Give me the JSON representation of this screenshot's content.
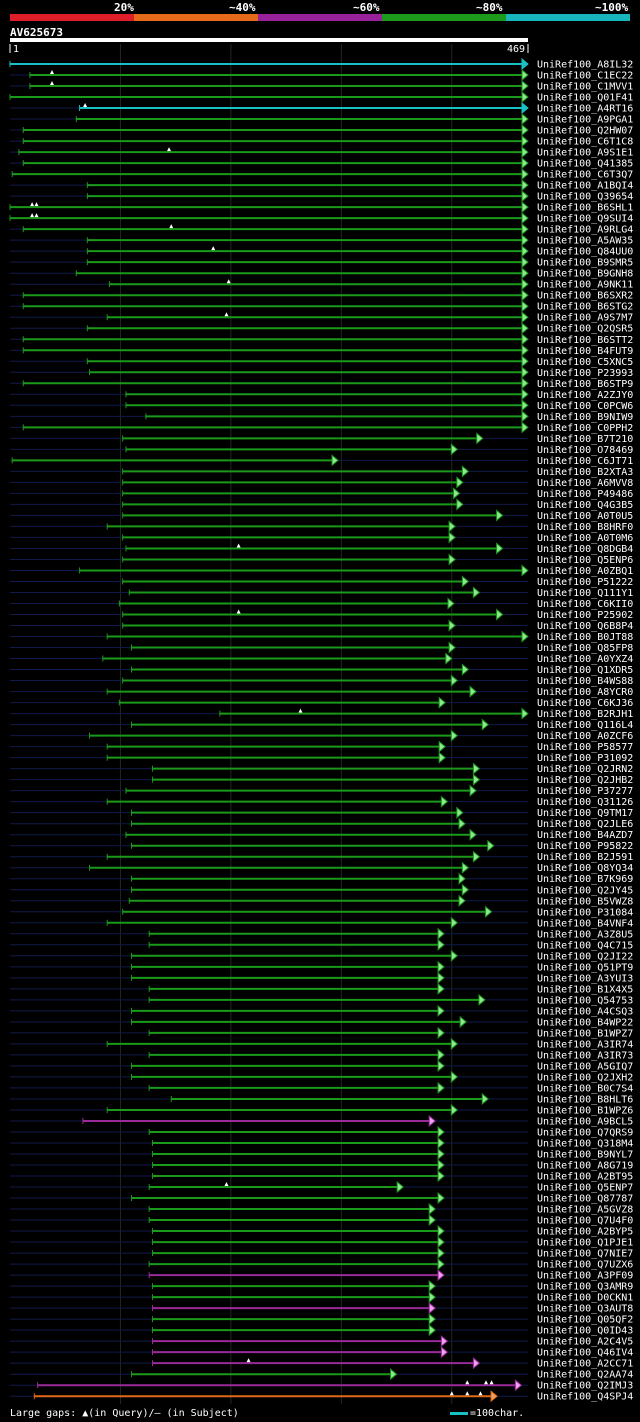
{
  "legend": {
    "colors": [
      "#e01e2a",
      "#e66a1a",
      "#98229a",
      "#1b9a1b",
      "#17b6bd"
    ],
    "labels": [
      "20%",
      "~40%",
      "~60%",
      "~80%",
      "~100%"
    ]
  },
  "query": {
    "id": "AV625673",
    "start": "1",
    "end": "469"
  },
  "footer": {
    "gaps_text": "Large gaps: ▲(in Query)/— (in Subject)",
    "scale_text": "=100char."
  },
  "hits": [
    {
      "name": "UniRef100_A8IL32",
      "start": 0,
      "end": 469,
      "color": "cyan"
    },
    {
      "name": "UniRef100_C1EC22",
      "start": 18,
      "end": 469,
      "color": "green",
      "q": [
        38
      ]
    },
    {
      "name": "UniRef100_C1MVV1",
      "start": 18,
      "end": 469,
      "color": "green",
      "q": [
        38
      ]
    },
    {
      "name": "UniRef100_Q01F41",
      "start": 0,
      "end": 469,
      "color": "green"
    },
    {
      "name": "UniRef100_A4RT16",
      "start": 63,
      "end": 469,
      "color": "cyan",
      "q": [
        68
      ]
    },
    {
      "name": "UniRef100_A9PGA1",
      "start": 60,
      "end": 469,
      "color": "green"
    },
    {
      "name": "UniRef100_Q2HW07",
      "start": 12,
      "end": 469,
      "color": "green"
    },
    {
      "name": "UniRef100_C6T1C8",
      "start": 12,
      "end": 469,
      "color": "green"
    },
    {
      "name": "UniRef100_A9S1E1",
      "start": 8,
      "end": 469,
      "color": "green",
      "q": [
        144
      ]
    },
    {
      "name": "UniRef100_Q41385",
      "start": 12,
      "end": 469,
      "color": "green"
    },
    {
      "name": "UniRef100_C6T3Q7",
      "start": 2,
      "end": 469,
      "color": "green"
    },
    {
      "name": "UniRef100_A1BQI4",
      "start": 70,
      "end": 469,
      "color": "green"
    },
    {
      "name": "UniRef100_Q39654",
      "start": 70,
      "end": 469,
      "color": "green"
    },
    {
      "name": "UniRef100_B6SHL1",
      "start": 0,
      "end": 469,
      "color": "green",
      "q": [
        20,
        24
      ]
    },
    {
      "name": "UniRef100_Q9SUI4",
      "start": 0,
      "end": 469,
      "color": "green",
      "q": [
        20,
        24
      ]
    },
    {
      "name": "UniRef100_A9RLG4",
      "start": 12,
      "end": 469,
      "color": "green",
      "q": [
        146
      ]
    },
    {
      "name": "UniRef100_A5AW35",
      "start": 70,
      "end": 469,
      "color": "green"
    },
    {
      "name": "UniRef100_Q84UU0",
      "start": 70,
      "end": 469,
      "color": "green",
      "q": [
        184
      ]
    },
    {
      "name": "UniRef100_B9SMR5",
      "start": 70,
      "end": 469,
      "color": "green"
    },
    {
      "name": "UniRef100_B9GNH8",
      "start": 60,
      "end": 469,
      "color": "green"
    },
    {
      "name": "UniRef100_A9NK11",
      "start": 90,
      "end": 469,
      "color": "green",
      "q": [
        198
      ]
    },
    {
      "name": "UniRef100_B6SXR2",
      "start": 12,
      "end": 469,
      "color": "green"
    },
    {
      "name": "UniRef100_B6STG2",
      "start": 12,
      "end": 469,
      "color": "green"
    },
    {
      "name": "UniRef100_A9S7M7",
      "start": 88,
      "end": 469,
      "color": "green",
      "q": [
        196
      ]
    },
    {
      "name": "UniRef100_Q2QSR5",
      "start": 70,
      "end": 469,
      "color": "green"
    },
    {
      "name": "UniRef100_B6STT2",
      "start": 12,
      "end": 469,
      "color": "green"
    },
    {
      "name": "UniRef100_B4FUT9",
      "start": 12,
      "end": 469,
      "color": "green"
    },
    {
      "name": "UniRef100_C5XNC5",
      "start": 70,
      "end": 469,
      "color": "green"
    },
    {
      "name": "UniRef100_P23993",
      "start": 72,
      "end": 469,
      "color": "green"
    },
    {
      "name": "UniRef100_B6STP9",
      "start": 12,
      "end": 469,
      "color": "green"
    },
    {
      "name": "UniRef100_A2ZJY0",
      "start": 105,
      "end": 469,
      "color": "green"
    },
    {
      "name": "UniRef100_C0PCW6",
      "start": 105,
      "end": 469,
      "color": "green"
    },
    {
      "name": "UniRef100_B9NIW9",
      "start": 123,
      "end": 469,
      "color": "green"
    },
    {
      "name": "UniRef100_C0PPH2",
      "start": 12,
      "end": 469,
      "color": "green"
    },
    {
      "name": "UniRef100_B7T210",
      "start": 102,
      "end": 428,
      "color": "green"
    },
    {
      "name": "UniRef100_O78469",
      "start": 105,
      "end": 405,
      "color": "green"
    },
    {
      "name": "UniRef100_C6JT71",
      "start": 2,
      "end": 297,
      "color": "green"
    },
    {
      "name": "UniRef100_B2XTA3",
      "start": 102,
      "end": 415,
      "color": "green"
    },
    {
      "name": "UniRef100_A6MVV8",
      "start": 102,
      "end": 410,
      "color": "green"
    },
    {
      "name": "UniRef100_P49486",
      "start": 102,
      "end": 407,
      "color": "green"
    },
    {
      "name": "UniRef100_Q4G3B5",
      "start": 102,
      "end": 410,
      "color": "green"
    },
    {
      "name": "UniRef100_A0T0U5",
      "start": 102,
      "end": 446,
      "color": "green"
    },
    {
      "name": "UniRef100_B8HRF0",
      "start": 88,
      "end": 403,
      "color": "green"
    },
    {
      "name": "UniRef100_A0T0M6",
      "start": 102,
      "end": 403,
      "color": "green"
    },
    {
      "name": "UniRef100_Q8DGB4",
      "start": 105,
      "end": 446,
      "color": "green",
      "q": [
        207
      ]
    },
    {
      "name": "UniRef100_Q5ENP6",
      "start": 102,
      "end": 403,
      "color": "green"
    },
    {
      "name": "UniRef100_A0ZBQ1",
      "start": 63,
      "end": 469,
      "color": "green"
    },
    {
      "name": "UniRef100_P51222",
      "start": 102,
      "end": 415,
      "color": "green"
    },
    {
      "name": "UniRef100_Q111Y1",
      "start": 108,
      "end": 425,
      "color": "green"
    },
    {
      "name": "UniRef100_C6KII0",
      "start": 99,
      "end": 402,
      "color": "green"
    },
    {
      "name": "UniRef100_P25902",
      "start": 102,
      "end": 446,
      "color": "green",
      "q": [
        207
      ]
    },
    {
      "name": "UniRef100_Q6B8P4",
      "start": 102,
      "end": 403,
      "color": "green"
    },
    {
      "name": "UniRef100_B0JT88",
      "start": 88,
      "end": 469,
      "color": "green"
    },
    {
      "name": "UniRef100_Q85FP8",
      "start": 110,
      "end": 403,
      "color": "green"
    },
    {
      "name": "UniRef100_A0YXZ4",
      "start": 84,
      "end": 400,
      "color": "green"
    },
    {
      "name": "UniRef100_Q1XDR5",
      "start": 110,
      "end": 415,
      "color": "green"
    },
    {
      "name": "UniRef100_B4WS88",
      "start": 102,
      "end": 405,
      "color": "green"
    },
    {
      "name": "UniRef100_A8YCR0",
      "start": 88,
      "end": 422,
      "color": "green"
    },
    {
      "name": "UniRef100_C6KJ36",
      "start": 99,
      "end": 394,
      "color": "green"
    },
    {
      "name": "UniRef100_B2RJH1",
      "start": 190,
      "end": 469,
      "color": "green",
      "q": [
        263
      ]
    },
    {
      "name": "UniRef100_Q116L4",
      "start": 110,
      "end": 433,
      "color": "green"
    },
    {
      "name": "UniRef100_A0ZCF6",
      "start": 72,
      "end": 405,
      "color": "green"
    },
    {
      "name": "UniRef100_P58577",
      "start": 88,
      "end": 394,
      "color": "green"
    },
    {
      "name": "UniRef100_P31092",
      "start": 88,
      "end": 394,
      "color": "green"
    },
    {
      "name": "UniRef100_Q2JRN2",
      "start": 129,
      "end": 425,
      "color": "green"
    },
    {
      "name": "UniRef100_Q2JHB2",
      "start": 129,
      "end": 425,
      "color": "green"
    },
    {
      "name": "UniRef100_P37277",
      "start": 105,
      "end": 422,
      "color": "green"
    },
    {
      "name": "UniRef100_Q31126",
      "start": 88,
      "end": 396,
      "color": "green"
    },
    {
      "name": "UniRef100_Q9TM17",
      "start": 110,
      "end": 410,
      "color": "green"
    },
    {
      "name": "UniRef100_Q2JLE6",
      "start": 110,
      "end": 412,
      "color": "green"
    },
    {
      "name": "UniRef100_B4AZD7",
      "start": 105,
      "end": 422,
      "color": "green"
    },
    {
      "name": "UniRef100_P95822",
      "start": 110,
      "end": 438,
      "color": "green"
    },
    {
      "name": "UniRef100_B2J591",
      "start": 88,
      "end": 425,
      "color": "green"
    },
    {
      "name": "UniRef100_Q8YQ34",
      "start": 72,
      "end": 415,
      "color": "green"
    },
    {
      "name": "UniRef100_B7K969",
      "start": 110,
      "end": 412,
      "color": "green"
    },
    {
      "name": "UniRef100_Q2JY45",
      "start": 110,
      "end": 415,
      "color": "green"
    },
    {
      "name": "UniRef100_B5VWZ8",
      "start": 108,
      "end": 412,
      "color": "green"
    },
    {
      "name": "UniRef100_P31084",
      "start": 102,
      "end": 436,
      "color": "green"
    },
    {
      "name": "UniRef100_B4VNF4",
      "start": 88,
      "end": 405,
      "color": "green"
    },
    {
      "name": "UniRef100_A3Z8U5",
      "start": 126,
      "end": 393,
      "color": "green"
    },
    {
      "name": "UniRef100_Q4C715",
      "start": 126,
      "end": 393,
      "color": "green"
    },
    {
      "name": "UniRef100_Q2JI22",
      "start": 110,
      "end": 405,
      "color": "green"
    },
    {
      "name": "UniRef100_Q51PT9",
      "start": 110,
      "end": 393,
      "color": "green"
    },
    {
      "name": "UniRef100_A3YUI3",
      "start": 110,
      "end": 393,
      "color": "green"
    },
    {
      "name": "UniRef100_B1X4X5",
      "start": 126,
      "end": 393,
      "color": "green"
    },
    {
      "name": "UniRef100_Q54753",
      "start": 126,
      "end": 430,
      "color": "green"
    },
    {
      "name": "UniRef100_A4CSQ3",
      "start": 110,
      "end": 393,
      "color": "green"
    },
    {
      "name": "UniRef100_B4WP22",
      "start": 110,
      "end": 413,
      "color": "green"
    },
    {
      "name": "UniRef100_B1WPZ7",
      "start": 126,
      "end": 393,
      "color": "green"
    },
    {
      "name": "UniRef100_A3IR74",
      "start": 88,
      "end": 405,
      "color": "green"
    },
    {
      "name": "UniRef100_A3IR73",
      "start": 126,
      "end": 393,
      "color": "green"
    },
    {
      "name": "UniRef100_A5GIQ7",
      "start": 110,
      "end": 393,
      "color": "green"
    },
    {
      "name": "UniRef100_Q2JXH2",
      "start": 110,
      "end": 405,
      "color": "green"
    },
    {
      "name": "UniRef100_B0C7S4",
      "start": 126,
      "end": 393,
      "color": "green"
    },
    {
      "name": "UniRef100_B8HLT6",
      "start": 146,
      "end": 433,
      "color": "green"
    },
    {
      "name": "UniRef100_B1WPZ6",
      "start": 88,
      "end": 405,
      "color": "green"
    },
    {
      "name": "UniRef100_A9BCL5",
      "start": 66,
      "end": 385,
      "color": "purple"
    },
    {
      "name": "UniRef100_Q7QRS9",
      "start": 126,
      "end": 393,
      "color": "green"
    },
    {
      "name": "UniRef100_Q318M4",
      "start": 129,
      "end": 393,
      "color": "green"
    },
    {
      "name": "UniRef100_B9NYL7",
      "start": 129,
      "end": 393,
      "color": "green"
    },
    {
      "name": "UniRef100_A8G719",
      "start": 129,
      "end": 393,
      "color": "green"
    },
    {
      "name": "UniRef100_A2BT95",
      "start": 129,
      "end": 393,
      "color": "green"
    },
    {
      "name": "UniRef100_Q5ENP7",
      "start": 126,
      "end": 356,
      "color": "green",
      "q": [
        196
      ]
    },
    {
      "name": "UniRef100_Q87787",
      "start": 110,
      "end": 393,
      "color": "green"
    },
    {
      "name": "UniRef100_A5GVZ8",
      "start": 126,
      "end": 385,
      "color": "green"
    },
    {
      "name": "UniRef100_Q7U4F0",
      "start": 126,
      "end": 385,
      "color": "green"
    },
    {
      "name": "UniRef100_A2BYP5",
      "start": 129,
      "end": 393,
      "color": "green"
    },
    {
      "name": "UniRef100_Q1PJE1",
      "start": 129,
      "end": 393,
      "color": "green"
    },
    {
      "name": "UniRef100_Q7NIE7",
      "start": 129,
      "end": 393,
      "color": "green"
    },
    {
      "name": "UniRef100_Q7UZX6",
      "start": 126,
      "end": 393,
      "color": "green"
    },
    {
      "name": "UniRef100_A3PF09",
      "start": 126,
      "end": 393,
      "color": "purple"
    },
    {
      "name": "UniRef100_Q3AMR9",
      "start": 129,
      "end": 385,
      "color": "green"
    },
    {
      "name": "UniRef100_D0CKN1",
      "start": 129,
      "end": 385,
      "color": "green"
    },
    {
      "name": "UniRef100_Q3AUT8",
      "start": 129,
      "end": 385,
      "color": "purple"
    },
    {
      "name": "UniRef100_Q05QF2",
      "start": 129,
      "end": 385,
      "color": "green"
    },
    {
      "name": "UniRef100_Q0ID43",
      "start": 129,
      "end": 385,
      "color": "green"
    },
    {
      "name": "UniRef100_A2C4V5",
      "start": 129,
      "end": 396,
      "color": "purple"
    },
    {
      "name": "UniRef100_Q46IV4",
      "start": 129,
      "end": 396,
      "color": "purple"
    },
    {
      "name": "UniRef100_A2CC71",
      "start": 129,
      "end": 425,
      "color": "purple",
      "q": [
        216
      ]
    },
    {
      "name": "UniRef100_Q2AA74",
      "start": 110,
      "end": 350,
      "color": "green"
    },
    {
      "name": "UniRef100_Q2IMJ3",
      "start": 25,
      "end": 463,
      "color": "purple",
      "q": [
        414,
        431,
        436
      ]
    },
    {
      "name": "UniRef100_Q4SPJ4",
      "start": 22,
      "end": 441,
      "color": "orange",
      "q": [
        400,
        414,
        426
      ]
    }
  ]
}
